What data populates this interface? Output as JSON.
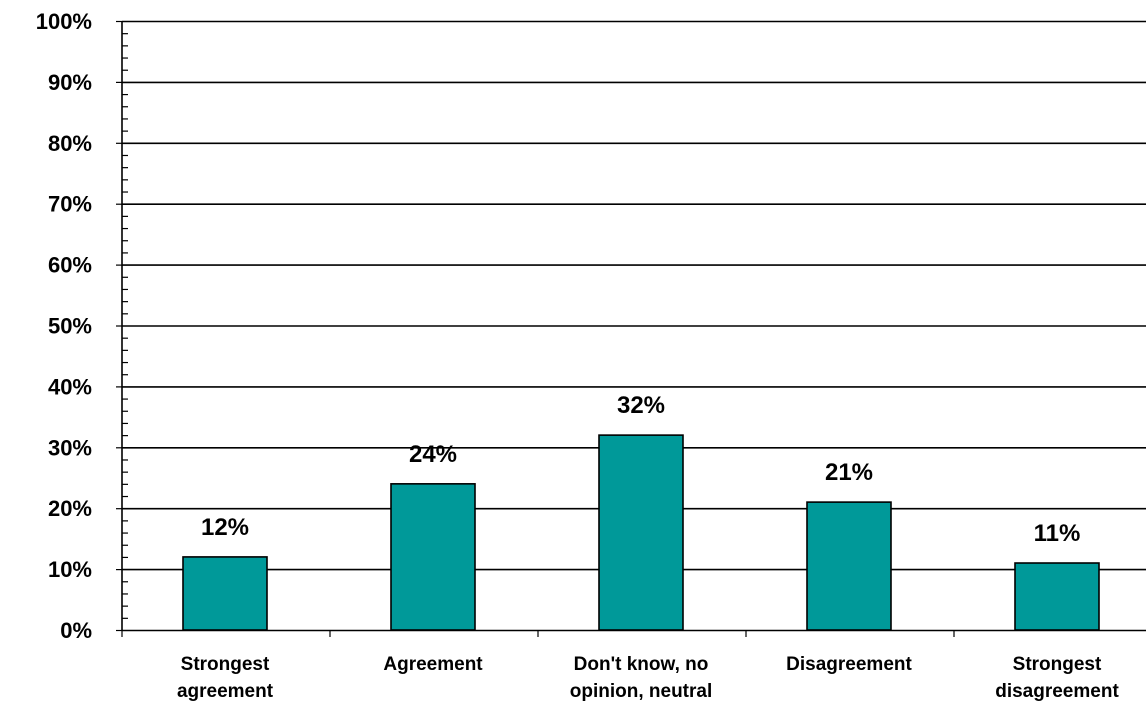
{
  "chart_data": {
    "type": "bar",
    "categories": [
      [
        "Strongest",
        "agreement"
      ],
      [
        "Agreement"
      ],
      [
        "Don't know, no",
        "opinion, neutral"
      ],
      [
        "Disagreement"
      ],
      [
        "Strongest",
        "disagreement"
      ]
    ],
    "values": [
      12,
      24,
      32,
      21,
      11
    ],
    "data_labels": [
      "12%",
      "24%",
      "32%",
      "21%",
      "11%"
    ],
    "ylim": [
      0,
      100
    ],
    "y_ticks": [
      0,
      10,
      20,
      30,
      40,
      50,
      60,
      70,
      80,
      90,
      100
    ],
    "y_tick_labels": [
      "0%",
      "10%",
      "20%",
      "30%",
      "40%",
      "50%",
      "60%",
      "70%",
      "80%",
      "90%",
      "100%"
    ],
    "grid": true,
    "title": "",
    "xlabel": "",
    "ylabel": "",
    "bar_color": "#009999"
  }
}
